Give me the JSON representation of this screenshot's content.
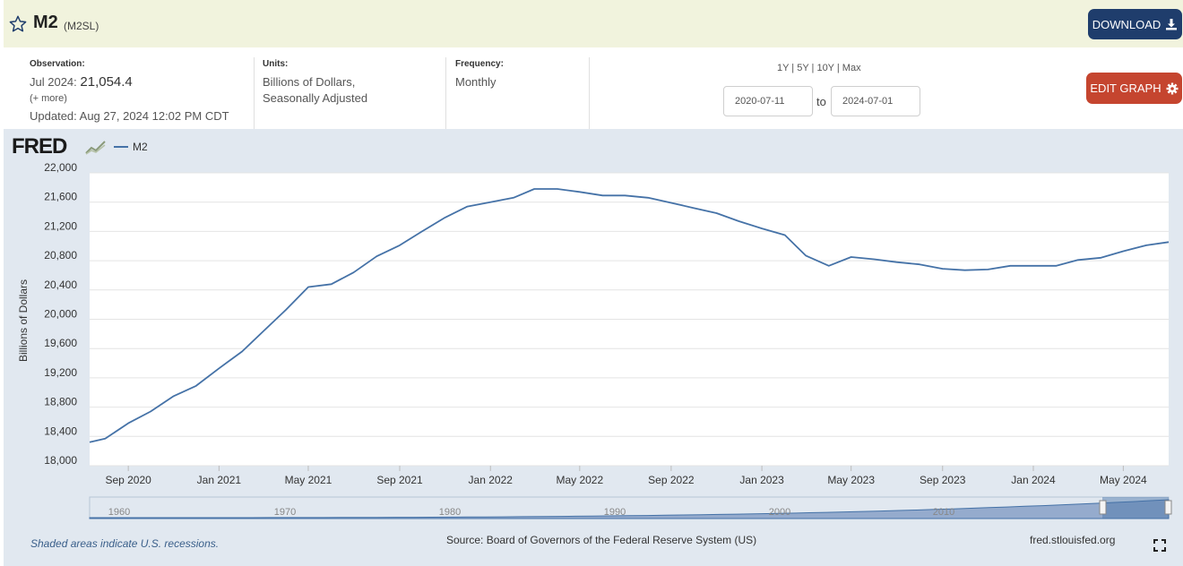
{
  "header": {
    "title": "M2",
    "series_id": "(M2SL)",
    "download_label": "DOWNLOAD"
  },
  "observation": {
    "label": "Observation:",
    "period": "Jul 2024:",
    "value": "21,054.4",
    "more": "(+ more)",
    "updated": "Updated: Aug 27, 2024 12:02 PM CDT"
  },
  "units": {
    "label": "Units:",
    "line1": "Billions of Dollars,",
    "line2": "Seasonally Adjusted"
  },
  "frequency": {
    "label": "Frequency:",
    "value": "Monthly"
  },
  "ranges": {
    "text": "1Y | 5Y | 10Y | Max"
  },
  "dates": {
    "start": "2020-07-11",
    "to": "to",
    "end": "2024-07-01"
  },
  "edit_label": "EDIT GRAPH",
  "legend": {
    "logo": "FRED",
    "series": "M2"
  },
  "footer": {
    "recession": "Shaded areas indicate U.S. recessions.",
    "source": "Source: Board of Governors of the Federal Reserve System (US)",
    "site": "fred.stlouisfed.org"
  },
  "colors": {
    "series": "#4572a7",
    "download": "#1f3d6c",
    "edit": "#c5452f"
  },
  "chart_data": {
    "type": "line",
    "ylabel": "Billions of Dollars",
    "xlabel": "",
    "ylim": [
      18000,
      22000
    ],
    "yticks": [
      18000,
      18400,
      18800,
      19200,
      19600,
      20000,
      20400,
      20800,
      21200,
      21600,
      22000
    ],
    "ytick_labels": [
      "18,000",
      "18,400",
      "18,800",
      "19,200",
      "19,600",
      "20,000",
      "20,400",
      "20,800",
      "21,200",
      "21,600",
      "22,000"
    ],
    "xticks": [
      "2020-09",
      "2021-01",
      "2021-05",
      "2021-09",
      "2022-01",
      "2022-05",
      "2022-09",
      "2023-01",
      "2023-05",
      "2023-09",
      "2024-01",
      "2024-05"
    ],
    "xtick_labels": [
      "Sep 2020",
      "Jan 2021",
      "May 2021",
      "Sep 2021",
      "Jan 2022",
      "May 2022",
      "Sep 2022",
      "Jan 2023",
      "May 2023",
      "Sep 2023",
      "Jan 2024",
      "May 2024"
    ],
    "x_range": [
      "2020-07-11",
      "2024-07-01"
    ],
    "grid": true,
    "legend_position": "top-left",
    "series": [
      {
        "name": "M2",
        "x": [
          "2020-07-01",
          "2020-08-01",
          "2020-09-01",
          "2020-10-01",
          "2020-11-01",
          "2020-12-01",
          "2021-01-01",
          "2021-02-01",
          "2021-03-01",
          "2021-04-01",
          "2021-05-01",
          "2021-06-01",
          "2021-07-01",
          "2021-08-01",
          "2021-09-01",
          "2021-10-01",
          "2021-11-01",
          "2021-12-01",
          "2022-01-01",
          "2022-02-01",
          "2022-03-01",
          "2022-04-01",
          "2022-05-01",
          "2022-06-01",
          "2022-07-01",
          "2022-08-01",
          "2022-09-01",
          "2022-10-01",
          "2022-11-01",
          "2022-12-01",
          "2023-01-01",
          "2023-02-01",
          "2023-03-01",
          "2023-04-01",
          "2023-05-01",
          "2023-06-01",
          "2023-07-01",
          "2023-08-01",
          "2023-09-01",
          "2023-10-01",
          "2023-11-01",
          "2023-12-01",
          "2024-01-01",
          "2024-02-01",
          "2024-03-01",
          "2024-04-01",
          "2024-05-01",
          "2024-06-01",
          "2024-07-01"
        ],
        "values": [
          18320,
          18370,
          18580,
          18740,
          18950,
          19090,
          19330,
          19560,
          19830,
          20130,
          20440,
          20480,
          20640,
          20860,
          21010,
          21200,
          21390,
          21540,
          21600,
          21660,
          21780,
          21780,
          21740,
          21690,
          21690,
          21660,
          21590,
          21520,
          21450,
          21340,
          21240,
          21150,
          20870,
          20730,
          20850,
          20820,
          20780,
          20750,
          20690,
          20670,
          20680,
          20730,
          20730,
          20730,
          20810,
          20840,
          20930,
          21010,
          21054
        ]
      }
    ],
    "overview_ticks": [
      "1960",
      "1970",
      "1980",
      "1990",
      "2000",
      "2010"
    ]
  }
}
